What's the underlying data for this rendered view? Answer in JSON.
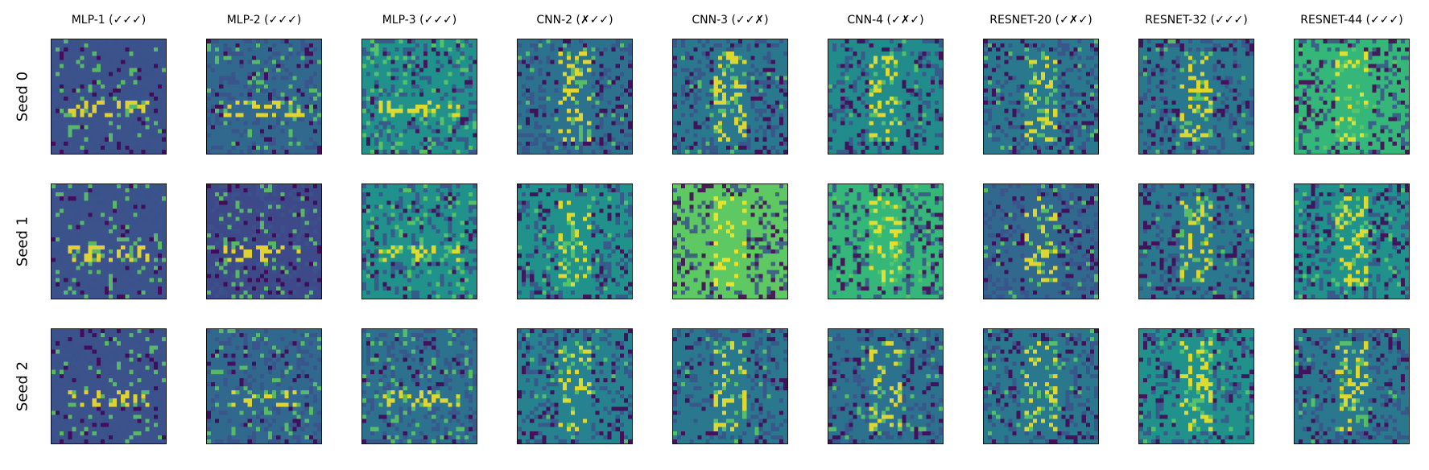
{
  "chart_data": {
    "type": "heatmap",
    "title": "",
    "columns": [
      {
        "title": "MLP-1 (✓✓✓)",
        "kind": "mlp",
        "bg": "#3b528b"
      },
      {
        "title": "MLP-2 (✓✓✓)",
        "kind": "mlp",
        "bg": "#31688e"
      },
      {
        "title": "MLP-3 (✓✓✓)",
        "kind": "mlp",
        "bg": "#21918c"
      },
      {
        "title": "CNN-2 (✗✓✓)",
        "kind": "digit",
        "bg": "#2c728e"
      },
      {
        "title": "CNN-3 (✓✓✗)",
        "kind": "digit",
        "bg": "#2a788e"
      },
      {
        "title": "CNN-4 (✓✗✓)",
        "kind": "digit",
        "bg": "#228c8d"
      },
      {
        "title": "RESNET-20 (✓✗✓)",
        "kind": "digit",
        "bg": "#2a788e"
      },
      {
        "title": "RESNET-32 (✓✓✓)",
        "kind": "digit",
        "bg": "#2a788e"
      },
      {
        "title": "RESNET-44 (✓✓✓)",
        "kind": "digit",
        "bg": "#35b779"
      }
    ],
    "rows": [
      "Seed 0",
      "Seed 1",
      "Seed 2"
    ],
    "colormap": [
      "#440154",
      "#3b528b",
      "#21918c",
      "#5ec962",
      "#fde725"
    ],
    "row_backgrounds": [
      [
        "#3b528b",
        "#31688e",
        "#21918c",
        "#2c728e",
        "#2a788e",
        "#228c8d",
        "#2a788e",
        "#2a788e",
        "#35b779"
      ],
      [
        "#3b528b",
        "#3e4989",
        "#21918c",
        "#21918c",
        "#5ec962",
        "#35b779",
        "#31688e",
        "#2a788e",
        "#21918c"
      ],
      [
        "#3b528b",
        "#31688e",
        "#2c728e",
        "#26828e",
        "#2a788e",
        "#2c728e",
        "#2a788e",
        "#21918c",
        "#2a788e"
      ]
    ]
  }
}
